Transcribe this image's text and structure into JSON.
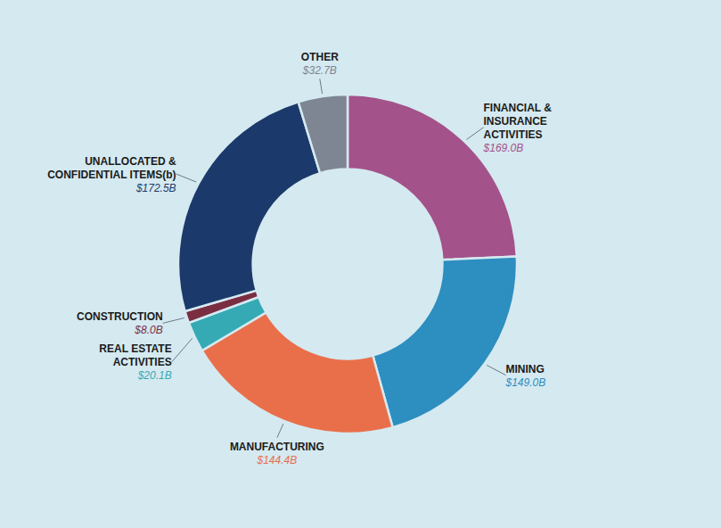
{
  "chart_data": {
    "type": "donut",
    "categories": [
      "FINANCIAL &\nINSURANCE\nACTIVITIES",
      "MINING",
      "MANUFACTURING",
      "REAL ESTATE\nACTIVITIES",
      "CONSTRUCTION",
      "UNALLOCATED &\nCONFIDENTIAL ITEMS(b)",
      "OTHER"
    ],
    "values": [
      169.0,
      149.0,
      144.4,
      20.1,
      8.0,
      172.5,
      32.7
    ],
    "value_labels": [
      "$169.0B",
      "$149.0B",
      "$144.4B",
      "$20.1B",
      "$8.0B",
      "$172.5B",
      "$32.7B"
    ],
    "colors": [
      "#A3528A",
      "#2D8EC0",
      "#E96F4A",
      "#35AAB4",
      "#7B2D42",
      "#1B3A6B",
      "#7E8593"
    ],
    "data_labels": true
  }
}
